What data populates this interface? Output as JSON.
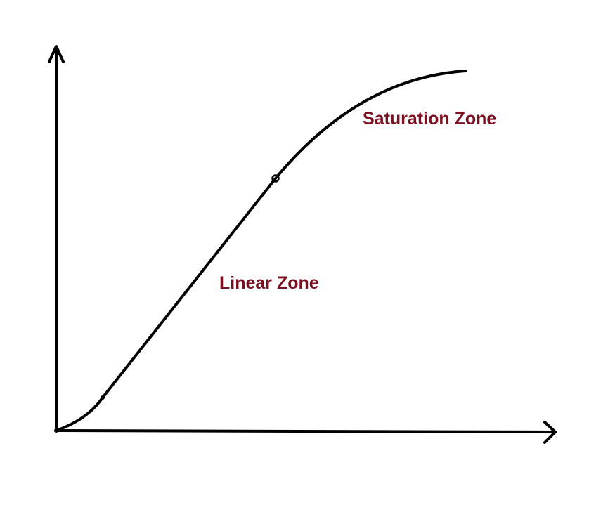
{
  "labels": {
    "saturation": "Saturation Zone",
    "linear": "Linear Zone"
  },
  "colors": {
    "stroke": "#000000",
    "label": "#7a1020",
    "background": "#ffffff"
  }
}
